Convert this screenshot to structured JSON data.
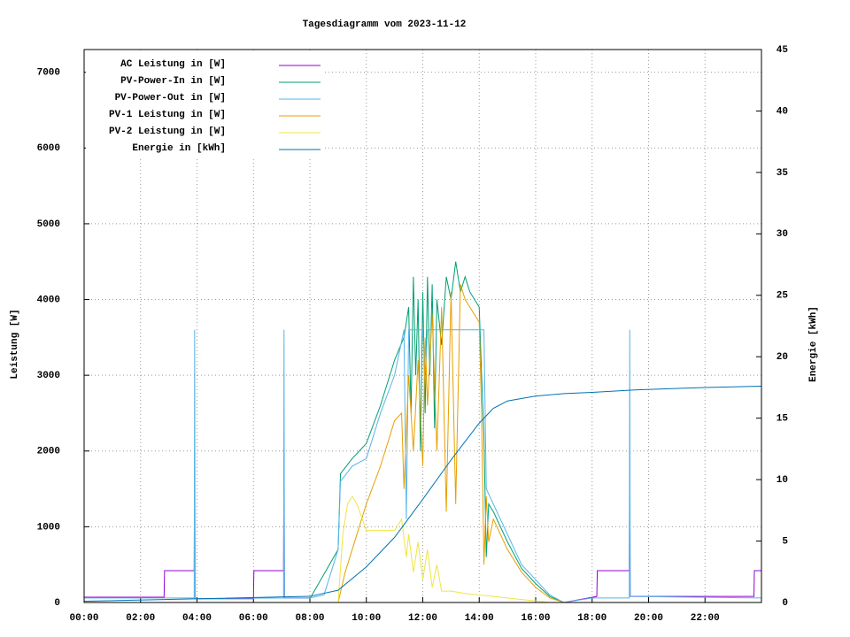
{
  "chart_data": {
    "type": "line",
    "title": "Tagesdiagramm vom 2023-11-12",
    "ylabel": "Leistung [W]",
    "y2label": "Energie [kWh]",
    "grid": true,
    "legend": "upper-left",
    "xlim": [
      "00:00",
      "24:00"
    ],
    "xticks": [
      "00:00",
      "02:00",
      "04:00",
      "06:00",
      "08:00",
      "10:00",
      "12:00",
      "14:00",
      "16:00",
      "18:00",
      "20:00",
      "22:00"
    ],
    "ylim": [
      0,
      7300
    ],
    "yticks": [
      0,
      1000,
      2000,
      3000,
      4000,
      5000,
      6000,
      7000
    ],
    "y2lim": [
      0,
      45
    ],
    "y2ticks": [
      0,
      5,
      10,
      15,
      20,
      25,
      30,
      35,
      40,
      45
    ],
    "series": [
      {
        "name": "AC Leistung in [W]",
        "color": "#9400d3",
        "x": [
          "00:00",
          "02:50",
          "02:51",
          "03:54",
          "03:55",
          "03:56",
          "06:00",
          "06:01",
          "07:04",
          "07:05",
          "07:06",
          "08:00",
          "12:00",
          "17:00",
          "18:10",
          "18:11",
          "19:19",
          "19:20",
          "19:21",
          "23:44",
          "23:45",
          "23:59"
        ],
        "values": [
          70,
          70,
          420,
          420,
          2000,
          50,
          50,
          420,
          420,
          2000,
          60,
          60,
          null,
          0,
          80,
          420,
          420,
          2000,
          80,
          80,
          420,
          420
        ]
      },
      {
        "name": "PV-Power-In in [W]",
        "color": "#009e73",
        "x": [
          "08:00",
          "09:00",
          "09:05",
          "09:30",
          "10:00",
          "10:30",
          "11:00",
          "11:20",
          "11:30",
          "11:35",
          "11:40",
          "11:45",
          "11:50",
          "11:55",
          "12:00",
          "12:05",
          "12:10",
          "12:15",
          "12:20",
          "12:25",
          "12:30",
          "12:40",
          "12:50",
          "13:00",
          "13:10",
          "13:20",
          "13:30",
          "13:40",
          "13:50",
          "14:00",
          "14:05",
          "14:10",
          "14:15",
          "14:20",
          "14:30",
          "15:00",
          "15:30",
          "16:00",
          "16:30",
          "17:00"
        ],
        "values": [
          50,
          700,
          1700,
          1900,
          2100,
          2600,
          3200,
          3500,
          3900,
          2500,
          4300,
          3000,
          4000,
          2000,
          4100,
          2500,
          4300,
          3000,
          4200,
          2300,
          4000,
          3400,
          4300,
          4000,
          4500,
          4100,
          4300,
          4100,
          4000,
          3900,
          3000,
          2200,
          600,
          1300,
          1200,
          800,
          450,
          250,
          80,
          0
        ]
      },
      {
        "name": "PV-Power-Out in [W]",
        "color": "#56b4e9",
        "x": [
          "00:00",
          "03:54",
          "03:55",
          "03:56",
          "07:04",
          "07:05",
          "07:06",
          "08:00",
          "08:30",
          "09:00",
          "09:05",
          "09:30",
          "10:00",
          "10:30",
          "11:00",
          "11:10",
          "11:20",
          "11:25",
          "11:30",
          "12:00",
          "12:05",
          "12:10",
          "13:00",
          "13:30",
          "14:00",
          "14:10",
          "14:15",
          "14:30",
          "15:00",
          "15:30",
          "16:00",
          "16:30",
          "17:00",
          "18:00",
          "19:19",
          "19:20",
          "19:21",
          "23:59"
        ],
        "values": [
          60,
          60,
          3600,
          50,
          60,
          3600,
          60,
          60,
          100,
          700,
          1600,
          1800,
          1900,
          2500,
          3000,
          3300,
          3600,
          1100,
          3600,
          3600,
          3000,
          3600,
          3600,
          3600,
          3600,
          3600,
          1500,
          1300,
          900,
          500,
          300,
          100,
          0,
          60,
          60,
          3600,
          80,
          60
        ]
      },
      {
        "name": "PV-1 Leistung in [W]",
        "color": "#e69f00",
        "x": [
          "09:00",
          "09:15",
          "09:30",
          "10:00",
          "10:30",
          "11:00",
          "11:15",
          "11:20",
          "11:30",
          "11:40",
          "11:50",
          "12:00",
          "12:05",
          "12:10",
          "12:20",
          "12:30",
          "12:40",
          "12:50",
          "13:00",
          "13:10",
          "13:20",
          "13:30",
          "13:40",
          "13:50",
          "14:00",
          "14:05",
          "14:10",
          "14:15",
          "14:20",
          "14:30",
          "15:00",
          "15:30",
          "16:00",
          "16:30",
          "17:00"
        ],
        "values": [
          0,
          400,
          700,
          1300,
          1800,
          2400,
          2500,
          1500,
          3000,
          2000,
          3200,
          1800,
          3500,
          2600,
          3800,
          2000,
          3900,
          1200,
          4100,
          1300,
          4200,
          4000,
          3900,
          3800,
          3700,
          2500,
          500,
          1400,
          800,
          1100,
          700,
          400,
          200,
          60,
          0
        ]
      },
      {
        "name": "PV-2 Leistung in [W]",
        "color": "#f0e442",
        "x": [
          "09:00",
          "09:10",
          "09:20",
          "09:30",
          "09:40",
          "10:00",
          "10:30",
          "11:00",
          "11:15",
          "11:25",
          "11:30",
          "11:40",
          "11:50",
          "12:00",
          "12:10",
          "12:20",
          "12:30",
          "12:40",
          "13:00",
          "13:30",
          "14:00",
          "14:30",
          "15:00",
          "15:30",
          "16:00",
          "16:30"
        ],
        "values": [
          0,
          900,
          1300,
          1400,
          1300,
          950,
          950,
          950,
          1100,
          600,
          900,
          400,
          800,
          300,
          700,
          200,
          500,
          150,
          150,
          120,
          100,
          80,
          60,
          40,
          20,
          0
        ]
      },
      {
        "name": "Energie in [kWh]",
        "color": "#0072b2",
        "axis": "y2",
        "x": [
          "00:00",
          "08:00",
          "09:00",
          "10:00",
          "11:00",
          "12:00",
          "13:00",
          "14:00",
          "14:30",
          "15:00",
          "16:00",
          "17:00",
          "18:00",
          "19:30",
          "22:00",
          "23:59"
        ],
        "values": [
          0.1,
          0.5,
          1.0,
          2.9,
          5.3,
          8.4,
          11.6,
          14.6,
          15.8,
          16.4,
          16.8,
          17.0,
          17.1,
          17.3,
          17.5,
          17.6
        ]
      }
    ]
  }
}
